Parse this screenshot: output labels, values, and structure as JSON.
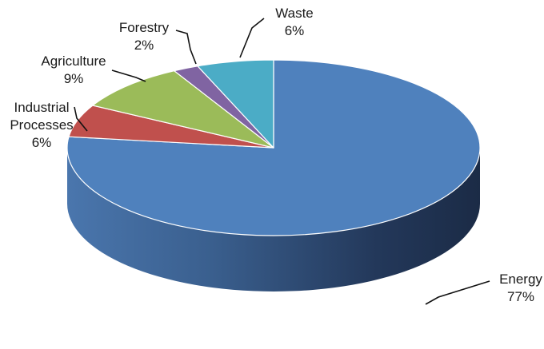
{
  "chart_data": {
    "type": "pie",
    "style": "3d",
    "title": "",
    "categories": [
      "Energy",
      "Industrial Processes",
      "Agriculture",
      "Forestry",
      "Waste"
    ],
    "values": [
      77,
      6,
      9,
      2,
      6
    ],
    "labels": [
      {
        "name": [
          "Energy"
        ],
        "value": "77%"
      },
      {
        "name": [
          "Industrial",
          "Processes"
        ],
        "value": "6%"
      },
      {
        "name": [
          "Agriculture"
        ],
        "value": "9%"
      },
      {
        "name": [
          "Forestry"
        ],
        "value": "2%"
      },
      {
        "name": [
          "Waste"
        ],
        "value": "6%"
      }
    ],
    "colors": [
      "#4f81bd",
      "#c0504d",
      "#9bbb59",
      "#8064a2",
      "#4bacc6"
    ],
    "legend": "none"
  }
}
